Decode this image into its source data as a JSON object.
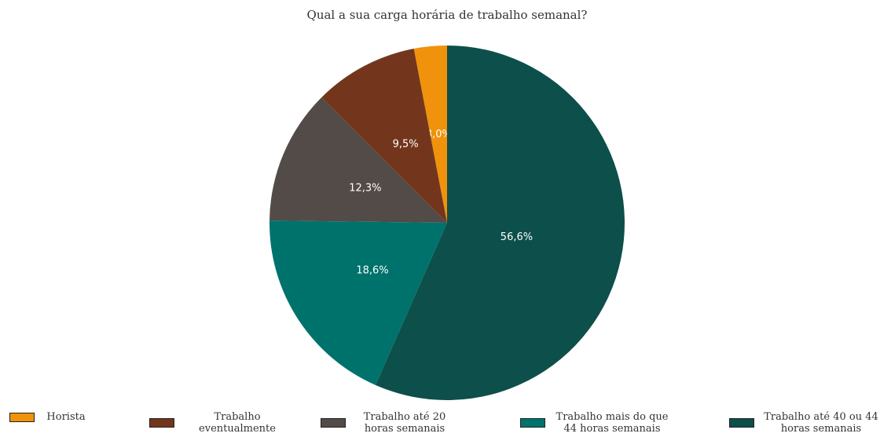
{
  "chart_data": {
    "type": "pie",
    "title": "Qual a sua carga horária de trabalho semanal?",
    "categories": [
      "Horista",
      "Trabalho eventualmente",
      "Trabalho até 20 horas semanais",
      "Trabalho mais do que 44 horas semanais",
      "Trabalho até 40 ou 44 horas semanais"
    ],
    "values": [
      3.0,
      9.5,
      12.3,
      18.6,
      56.6
    ],
    "value_labels": [
      "3,0%",
      "9,5%",
      "12,3%",
      "18,6%",
      "56,6%"
    ],
    "colors": [
      "#f0920b",
      "#73361c",
      "#524b47",
      "#00726c",
      "#0d4f4a"
    ],
    "legend": "bottom"
  }
}
